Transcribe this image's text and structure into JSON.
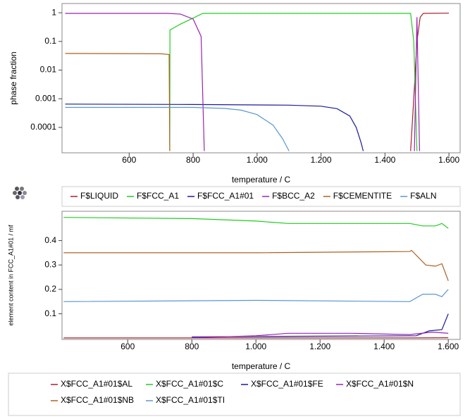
{
  "chart_data": [
    {
      "type": "line",
      "log_y": true,
      "legend": "bottom",
      "ylabel": "phase fraction",
      "xlabel": "temperature / C",
      "xlim": [
        390,
        1635
      ],
      "ylim": [
        1.3e-05,
        2.1
      ],
      "xticks": [
        600,
        800,
        {
          "value": 1000,
          "label": "1.000"
        },
        {
          "value": 1200,
          "label": "1.200"
        },
        {
          "value": 1400,
          "label": "1.400"
        },
        {
          "value": 1600,
          "label": "1.600"
        }
      ],
      "yticks": [
        1,
        0.1,
        0.01,
        0.001,
        0.0001
      ],
      "series": [
        {
          "name": "F$LIQUID",
          "color": "#a8202a",
          "x": [
            1480,
            1490,
            1500,
            1510,
            1520,
            1600
          ],
          "values": [
            1.5e-05,
            0.001,
            0.1,
            0.7,
            0.95,
            0.97
          ]
        },
        {
          "name": "F$FCC_A1",
          "color": "#22cc22",
          "x": [
            727,
            727.5,
            760,
            800,
            830,
            1480,
            1490,
            1500
          ],
          "values": [
            1.5e-05,
            0.25,
            0.4,
            0.65,
            0.95,
            0.95,
            0.1,
            1.5e-05
          ]
        },
        {
          "name": "F$FCC_A1#01",
          "color": "#1a1a9a",
          "x": [
            400,
            800,
            1100,
            1200,
            1250,
            1290,
            1310,
            1325,
            1332
          ],
          "values": [
            0.00065,
            0.00063,
            0.0006,
            0.00055,
            0.00045,
            0.00025,
            0.0001,
            3e-05,
            1.5e-05
          ]
        },
        {
          "name": "F$BCC_A2",
          "color": "#9a22b4",
          "x": [
            400,
            720,
            760,
            800,
            825,
            835,
            900,
            1492,
            1500,
            1508
          ],
          "values": [
            0.95,
            0.95,
            0.9,
            0.6,
            0.15,
            1.5e-05,
            null,
            1.5e-05,
            0.7,
            1.5e-05
          ]
        },
        {
          "name": "F$CEMENTITE",
          "color": "#b06020",
          "x": [
            400,
            700,
            725,
            727
          ],
          "values": [
            0.038,
            0.037,
            0.035,
            1.5e-05
          ]
        },
        {
          "name": "F$ALN",
          "color": "#5a96d2",
          "x": [
            400,
            800,
            900,
            950,
            1000,
            1050,
            1080,
            1100
          ],
          "values": [
            0.0005,
            0.0005,
            0.00046,
            0.0004,
            0.00028,
            0.00012,
            4e-05,
            1.5e-05
          ]
        }
      ]
    },
    {
      "type": "line",
      "log_y": false,
      "legend": "bottom",
      "ylabel": "element content in FCC_A1#01 / mf",
      "xlabel": "temperature / C",
      "xlim": [
        395,
        1637
      ],
      "ylim": [
        -0.005,
        0.52
      ],
      "xticks": [
        600,
        800,
        {
          "value": 1000,
          "label": "1.000"
        },
        {
          "value": 1200,
          "label": "1.200"
        },
        {
          "value": 1400,
          "label": "1.400"
        },
        {
          "value": 1600,
          "label": "1.600"
        }
      ],
      "yticks": [
        0.1,
        0.2,
        0.3,
        0.4
      ],
      "series": [
        {
          "name": "X$FCC_A1#01$AL",
          "color": "#a8202a",
          "x": [
            400,
            1000,
            1480,
            1600
          ],
          "values": [
            0.001,
            0.001,
            0.001,
            0.002
          ]
        },
        {
          "name": "X$FCC_A1#01$C",
          "color": "#22cc22",
          "x": [
            400,
            800,
            1000,
            1100,
            1480,
            1520,
            1560,
            1580,
            1600
          ],
          "values": [
            0.495,
            0.49,
            0.48,
            0.47,
            0.47,
            0.46,
            0.46,
            0.47,
            0.45
          ]
        },
        {
          "name": "X$FCC_A1#01$FE",
          "color": "#1a1a9a",
          "x": [
            800,
            1000,
            1500,
            1540,
            1580,
            1600
          ],
          "values": [
            0.005,
            0.007,
            0.01,
            0.03,
            0.035,
            0.1
          ]
        },
        {
          "name": "X$FCC_A1#01$N",
          "color": "#9a22b4",
          "x": [
            800,
            1000,
            1100,
            1300,
            1480,
            1550,
            1600
          ],
          "values": [
            0.002,
            0.01,
            0.02,
            0.02,
            0.015,
            0.025,
            0.02
          ]
        },
        {
          "name": "X$FCC_A1#01$NB",
          "color": "#b06020",
          "x": [
            400,
            1000,
            1480,
            1485,
            1530,
            1560,
            1580,
            1600
          ],
          "values": [
            0.35,
            0.35,
            0.355,
            0.36,
            0.3,
            0.295,
            0.305,
            0.235
          ]
        },
        {
          "name": "X$FCC_A1#01$TI",
          "color": "#5a96d2",
          "x": [
            400,
            1000,
            1480,
            1520,
            1560,
            1580,
            1600
          ],
          "values": [
            0.15,
            0.155,
            0.15,
            0.18,
            0.18,
            0.17,
            0.2
          ]
        }
      ]
    }
  ]
}
